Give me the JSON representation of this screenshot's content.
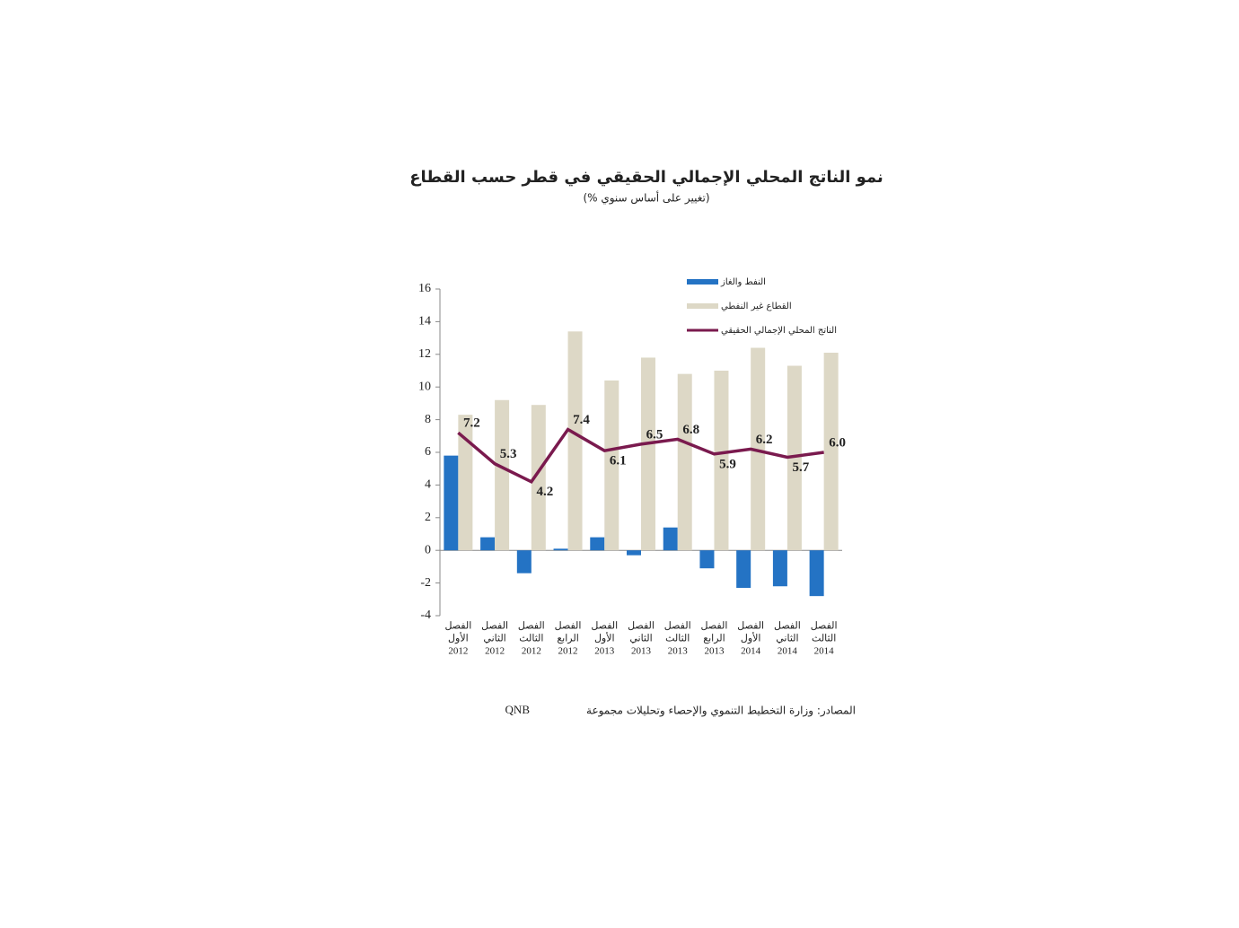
{
  "chart_data": {
    "type": "bar",
    "title": "نمو الناتج المحلي الإجمالي الحقيقي في قطر حسب القطاع",
    "subtitle": "(% تغيير على أساس سنوي)",
    "categories": [
      [
        "الفصل",
        "الأول",
        "2012"
      ],
      [
        "الفصل",
        "الثاني",
        "2012"
      ],
      [
        "الفصل",
        "الثالث",
        "2012"
      ],
      [
        "الفصل",
        "الرابع",
        "2012"
      ],
      [
        "الفصل",
        "الأول",
        "2013"
      ],
      [
        "الفصل",
        "الثاني",
        "2013"
      ],
      [
        "الفصل",
        "الثالث",
        "2013"
      ],
      [
        "الفصل",
        "الرابع",
        "2013"
      ],
      [
        "الفصل",
        "الأول",
        "2014"
      ],
      [
        "الفصل",
        "الثاني",
        "2014"
      ],
      [
        "الفصل",
        "الثالث",
        "2014"
      ]
    ],
    "series": [
      {
        "name": "النفط والغاز",
        "type": "bar",
        "color": "#2473c4",
        "values": [
          5.8,
          0.8,
          -1.4,
          0.1,
          0.8,
          -0.3,
          1.4,
          -1.1,
          -2.3,
          -2.2,
          -2.8
        ]
      },
      {
        "name": "القطاع غير النفطي",
        "type": "bar",
        "color": "#ddd8c6",
        "values": [
          8.3,
          9.2,
          8.9,
          13.4,
          10.4,
          11.8,
          10.8,
          11.0,
          12.4,
          11.3,
          12.1
        ]
      },
      {
        "name": "الناتج المحلي الإجمالي الحقيقي",
        "type": "line",
        "color": "#7a1a4e",
        "values": [
          7.2,
          5.3,
          4.2,
          7.4,
          6.1,
          6.5,
          6.8,
          5.9,
          6.2,
          5.7,
          6.0
        ],
        "value_labels": [
          "7.2",
          "5.3",
          "4.2",
          "7.4",
          "6.1",
          "6.5",
          "6.8",
          "5.9",
          "6.2",
          "5.7",
          "6.0"
        ]
      }
    ],
    "ylim": [
      -4,
      16
    ],
    "yticks": [
      -4,
      -2,
      0,
      2,
      4,
      6,
      8,
      10,
      12,
      14,
      16
    ],
    "source": [
      "المصادر: وزارة التخطيط التنموي والإحصاء وتحليلات مجموعة",
      "QNB"
    ]
  }
}
